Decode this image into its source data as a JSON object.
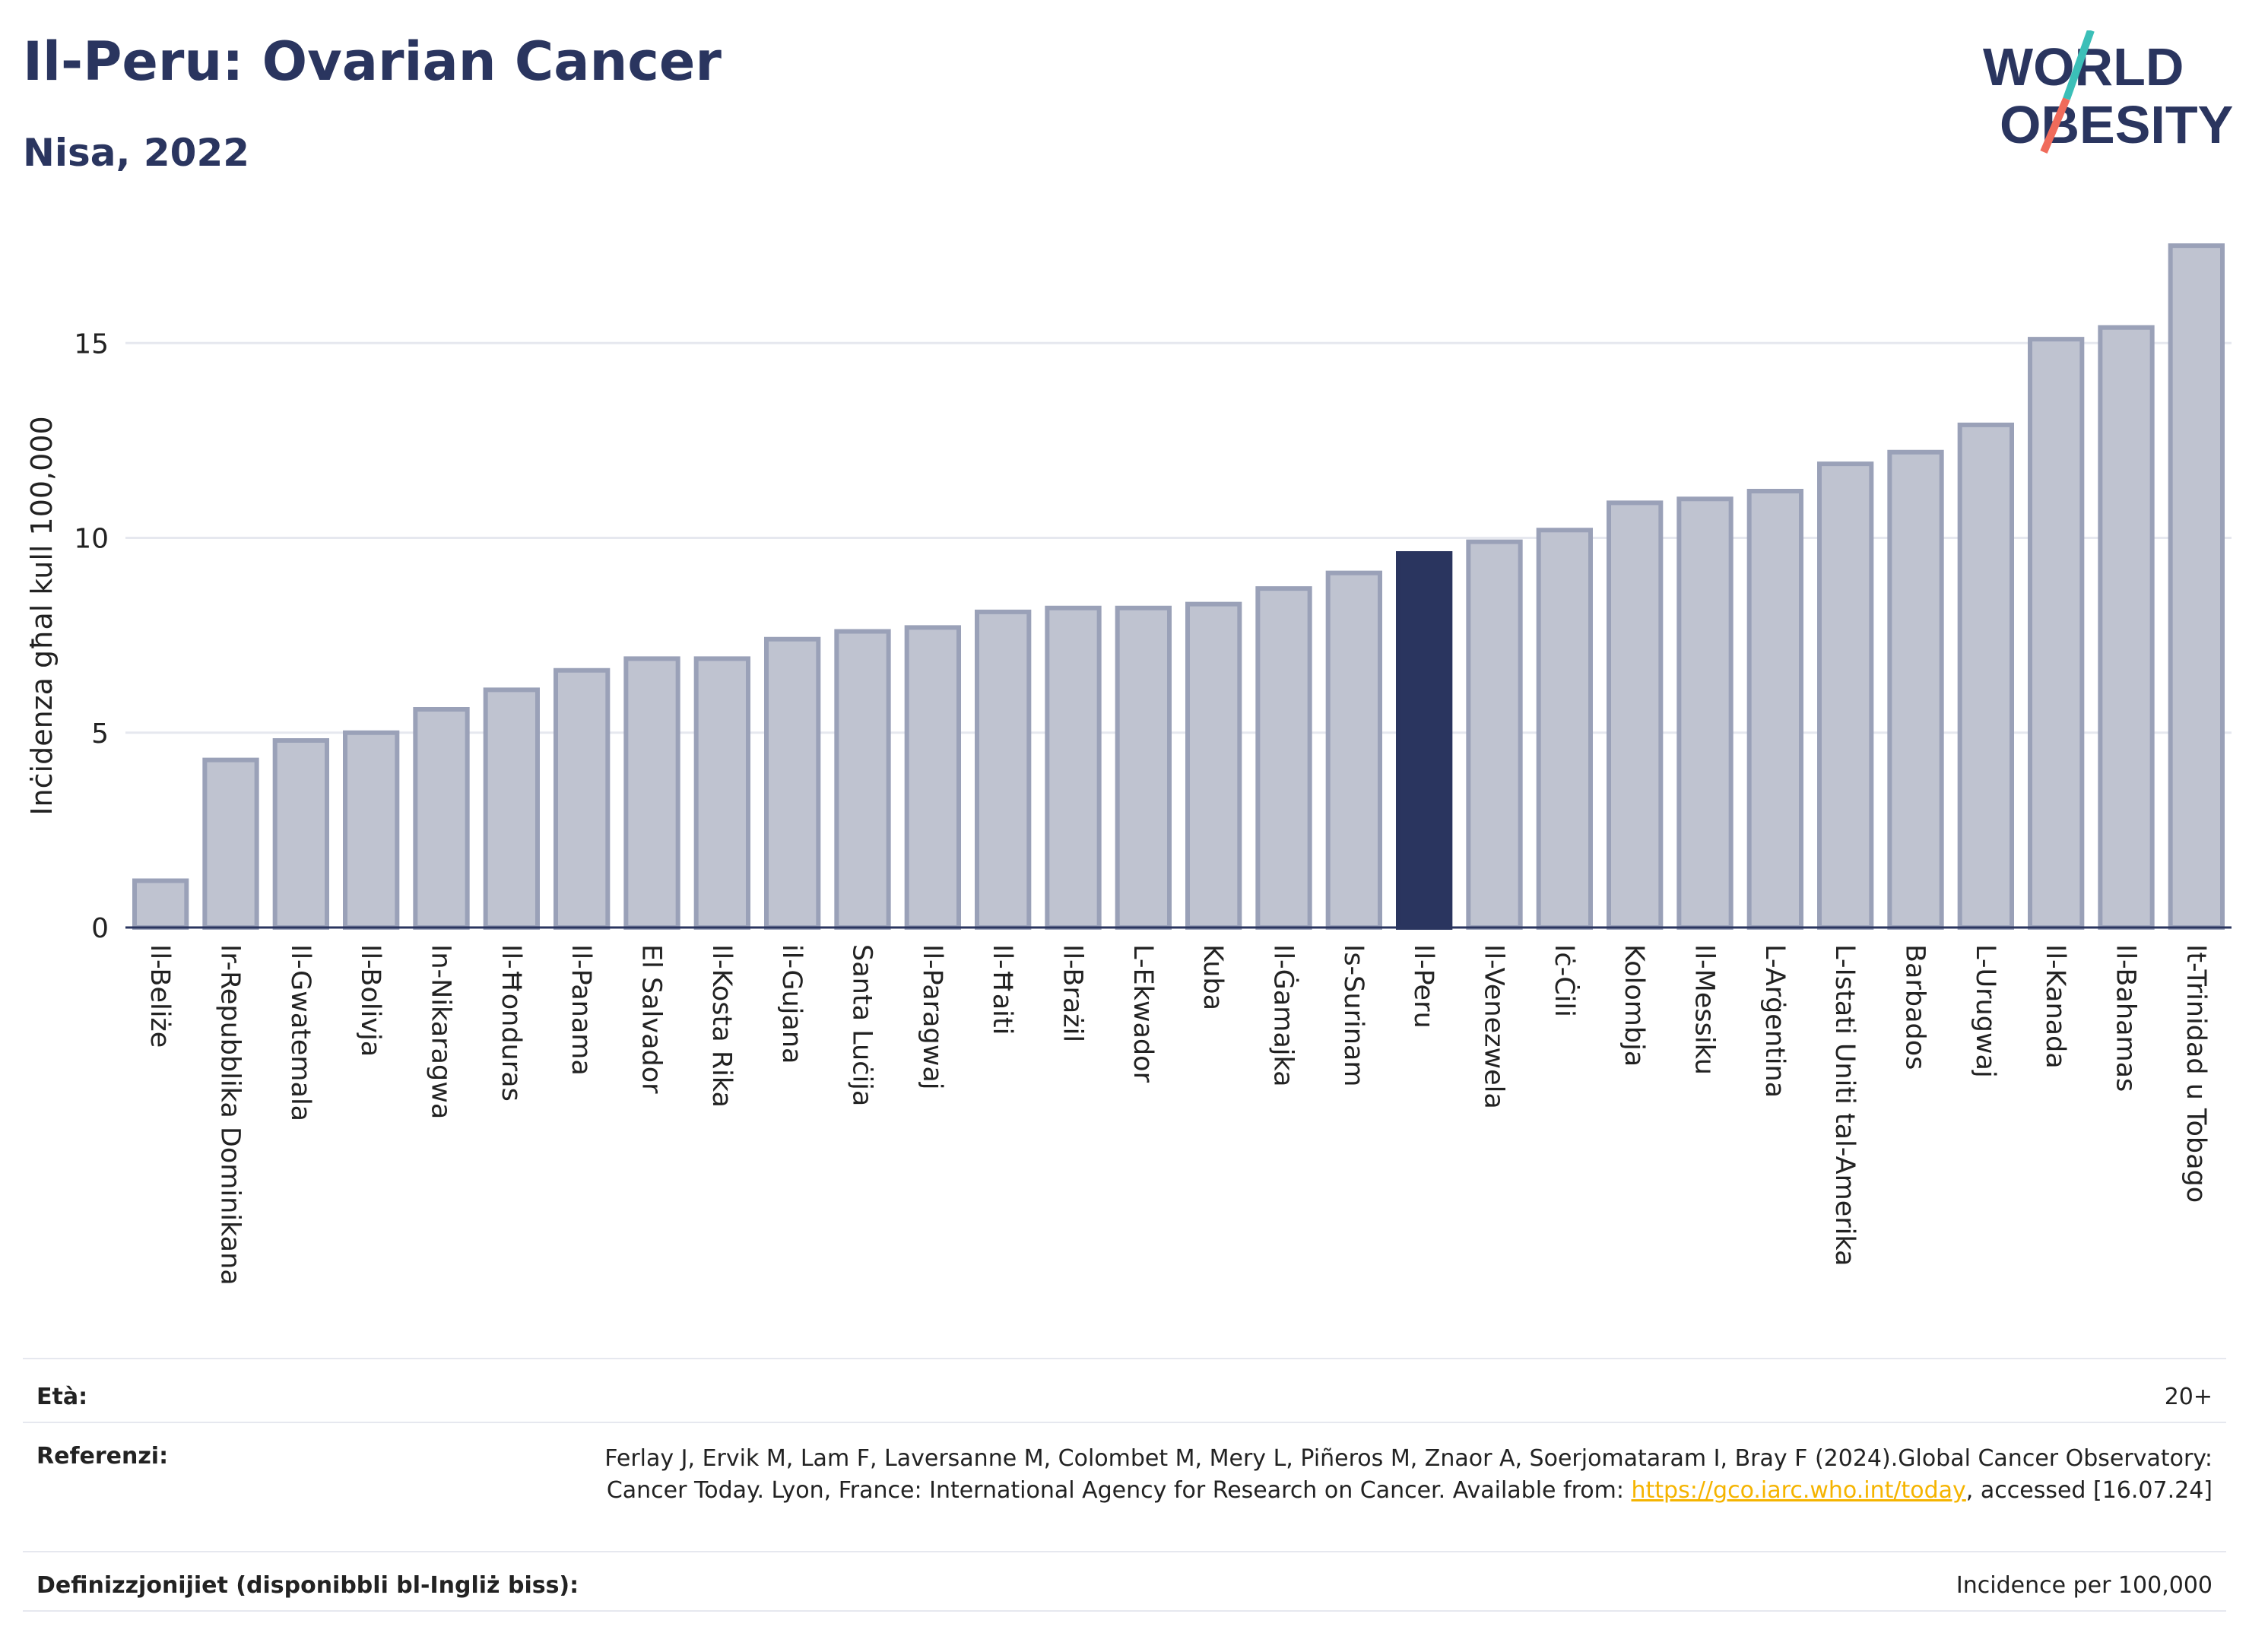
{
  "header": {
    "title": "Il-Peru: Ovarian Cancer",
    "subtitle": "Nisa, 2022",
    "logo_line1": "WORLD",
    "logo_line2": "OBESITY"
  },
  "colors": {
    "highlight": "#2a355f",
    "bar_fill": "#bfc3d0",
    "bar_stroke": "#9aa1b8",
    "grid": "#e6e8ef",
    "logo_teal": "#3bbfb8",
    "logo_coral": "#f06b5b"
  },
  "chart_data": {
    "type": "bar",
    "ylabel": "Inċidenza għal kull 100,000",
    "xlabel": "",
    "ylim": [
      0,
      17.6
    ],
    "yticks": [
      0,
      5,
      10,
      15
    ],
    "grid": true,
    "highlight": "Il-Peru",
    "categories": [
      "Il-Beliże",
      "Ir-Repubblika Dominikana",
      "Il-Gwatemala",
      "Il-Bolivja",
      "In-Nikaragwa",
      "Il-Ħonduras",
      "Il-Panama",
      "El Salvador",
      "Il-Kosta Rika",
      "il-Gujana",
      "Santa Luċija",
      "Il-Paragwaj",
      "Il-Ħaiti",
      "Il-Brażil",
      "L-Ekwador",
      "Kuba",
      "Il-Ġamajka",
      "Is-Surinam",
      "Il-Peru",
      "Il-Venezwela",
      "Iċ-Ċili",
      "Kolombja",
      "Il-Messiku",
      "L-Arġentina",
      "L-Istati Uniti tal-Amerika",
      "Barbados",
      "L-Urugwaj",
      "Il-Kanada",
      "Il-Bahamas",
      "It-Trinidad u Tobago"
    ],
    "values": [
      1.2,
      4.3,
      4.8,
      5.0,
      5.6,
      6.1,
      6.6,
      6.9,
      6.9,
      7.4,
      7.6,
      7.7,
      8.1,
      8.2,
      8.2,
      8.3,
      8.7,
      9.1,
      9.6,
      9.9,
      10.2,
      10.9,
      11.0,
      11.2,
      11.9,
      12.2,
      12.9,
      15.1,
      15.4,
      17.5
    ]
  },
  "meta": {
    "age_label": "Età:",
    "age_value": "20+",
    "ref_label": "Referenzi:",
    "ref_text": "Ferlay J, Ervik M, Lam F, Laversanne M, Colombet M, Mery L, Piñeros M, Znaor A, Soerjomataram I, Bray F (2024).Global Cancer Observatory: Cancer Today. Lyon, France: International Agency for Research on Cancer. Available from: ",
    "ref_link": "https://gco.iarc.who.int/today",
    "ref_tail": ", accessed [16.07.24]",
    "def_label": "Definizzjonijiet (disponibbli bl-Ingliż biss):",
    "def_value": "Incidence per 100,000"
  }
}
